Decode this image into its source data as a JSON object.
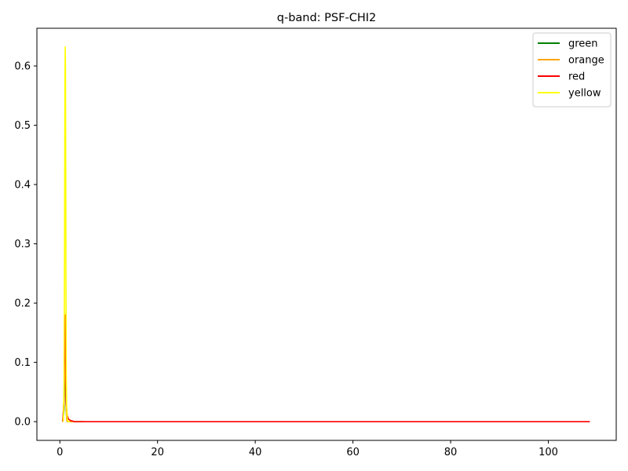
{
  "chart_data": {
    "type": "line",
    "title": "q-band: PSF-CHI2",
    "xlabel": "",
    "ylabel": "",
    "xlim": [
      -4.7,
      113.9
    ],
    "ylim": [
      -0.0316,
      0.6636
    ],
    "xticks": [
      0,
      20,
      40,
      60,
      80,
      100
    ],
    "yticks": [
      0.0,
      0.1,
      0.2,
      0.3,
      0.4,
      0.5,
      0.6
    ],
    "grid": false,
    "legend_position": "top-right",
    "series": [
      {
        "name": "green",
        "color": "#008000",
        "x": [
          0.6,
          0.85,
          1.0,
          1.1,
          1.2,
          1.3,
          1.4,
          1.5,
          1.7,
          2.0,
          3.0,
          5.0
        ],
        "y": [
          0.0,
          0.02,
          0.08,
          0.12,
          0.06,
          0.02,
          0.005,
          0.0,
          0.0,
          0.0,
          0.0,
          0.0
        ]
      },
      {
        "name": "orange",
        "color": "#ffa500",
        "x": [
          0.6,
          0.85,
          1.0,
          1.1,
          1.2,
          1.3,
          1.4,
          1.5,
          1.7,
          2.0,
          3.0,
          5.0
        ],
        "y": [
          0.0,
          0.03,
          0.1,
          0.15,
          0.07,
          0.02,
          0.005,
          0.0,
          0.0,
          0.0,
          0.0,
          0.0
        ]
      },
      {
        "name": "red",
        "color": "#ff0000",
        "x": [
          0.6,
          0.85,
          1.0,
          1.1,
          1.2,
          1.3,
          1.5,
          1.8,
          2.2,
          3.0,
          10,
          30,
          60,
          90,
          108.5
        ],
        "y": [
          0.0,
          0.04,
          0.14,
          0.18,
          0.1,
          0.03,
          0.01,
          0.004,
          0.002,
          0.0,
          0.0,
          0.0,
          0.0,
          0.0,
          0.0
        ]
      },
      {
        "name": "yellow",
        "color": "#ffff00",
        "x": [
          0.7,
          0.85,
          0.95,
          1.0,
          1.05,
          1.1,
          1.15,
          1.2,
          1.25,
          1.3,
          1.4,
          1.5,
          1.6,
          1.7,
          2.0
        ],
        "y": [
          0.0,
          0.05,
          0.25,
          0.45,
          0.58,
          0.632,
          0.6,
          0.45,
          0.25,
          0.08,
          0.02,
          0.006,
          0.002,
          0.0,
          0.0
        ]
      }
    ]
  }
}
